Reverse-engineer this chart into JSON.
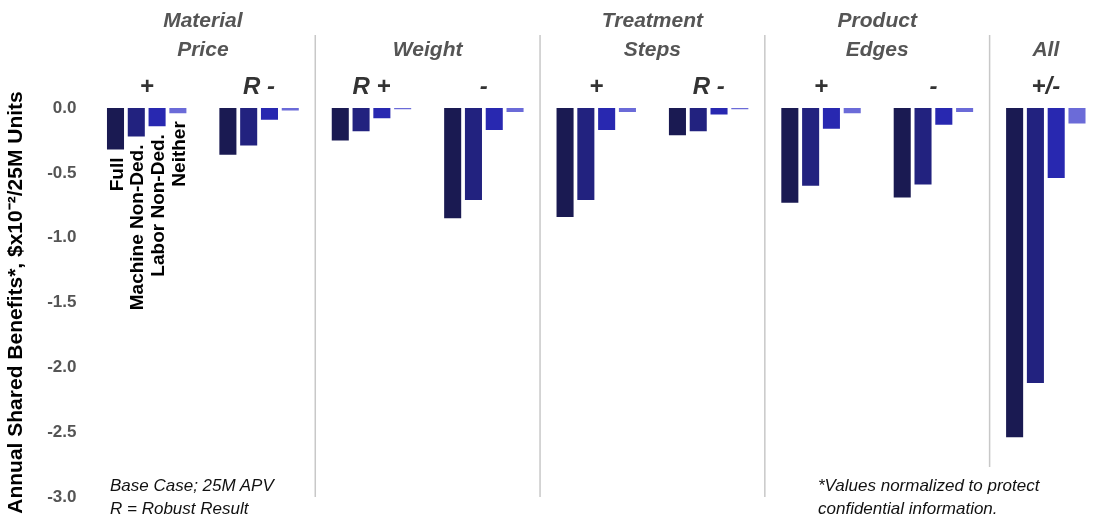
{
  "chart_data": {
    "type": "bar",
    "ylabel": "Annual Shared Benefits*, $x10⁻²/25M Units",
    "categories": [
      "+",
      "R -",
      "R +",
      "-",
      "+",
      "R -",
      "+",
      "-",
      "+/-"
    ],
    "series": [
      {
        "name": "Full",
        "color": "#1a1a52",
        "values": [
          -0.32,
          -0.36,
          -0.25,
          -0.85,
          -0.84,
          -0.21,
          -0.73,
          -0.69,
          -2.54
        ]
      },
      {
        "name": "Machine Non-Ded.",
        "color": "#22227f",
        "values": [
          -0.22,
          -0.29,
          -0.18,
          -0.71,
          -0.71,
          -0.18,
          -0.6,
          -0.59,
          -2.12
        ]
      },
      {
        "name": "Labor Non-Ded.",
        "color": "#2828b0",
        "values": [
          -0.14,
          -0.09,
          -0.08,
          -0.17,
          -0.17,
          -0.05,
          -0.16,
          -0.13,
          -0.54
        ]
      },
      {
        "name": "Neither",
        "color": "#6b6bd8",
        "values": [
          -0.04,
          -0.02,
          -0.01,
          -0.03,
          -0.03,
          -0.01,
          -0.04,
          -0.03,
          -0.12
        ]
      }
    ],
    "ylim": [
      -3,
      0
    ],
    "yticks": [
      {
        "value": -3,
        "label": "-3.0"
      },
      {
        "value": -2.5,
        "label": "-2.5"
      },
      {
        "value": -2,
        "label": "-2.0"
      },
      {
        "value": -1.5,
        "label": "-1.5"
      },
      {
        "value": -1,
        "label": "-1.0"
      },
      {
        "value": -0.5,
        "label": "-0.5"
      },
      {
        "value": 0,
        "label": "0.0"
      }
    ],
    "grid": false,
    "legend": false,
    "annotations": [
      "Material Price",
      "Weight",
      "Treatment Steps",
      "Product Edges",
      "All",
      "Base Case; 25M APV",
      "R = Robust Result",
      "*Values normalized to protect confidential information."
    ]
  }
}
